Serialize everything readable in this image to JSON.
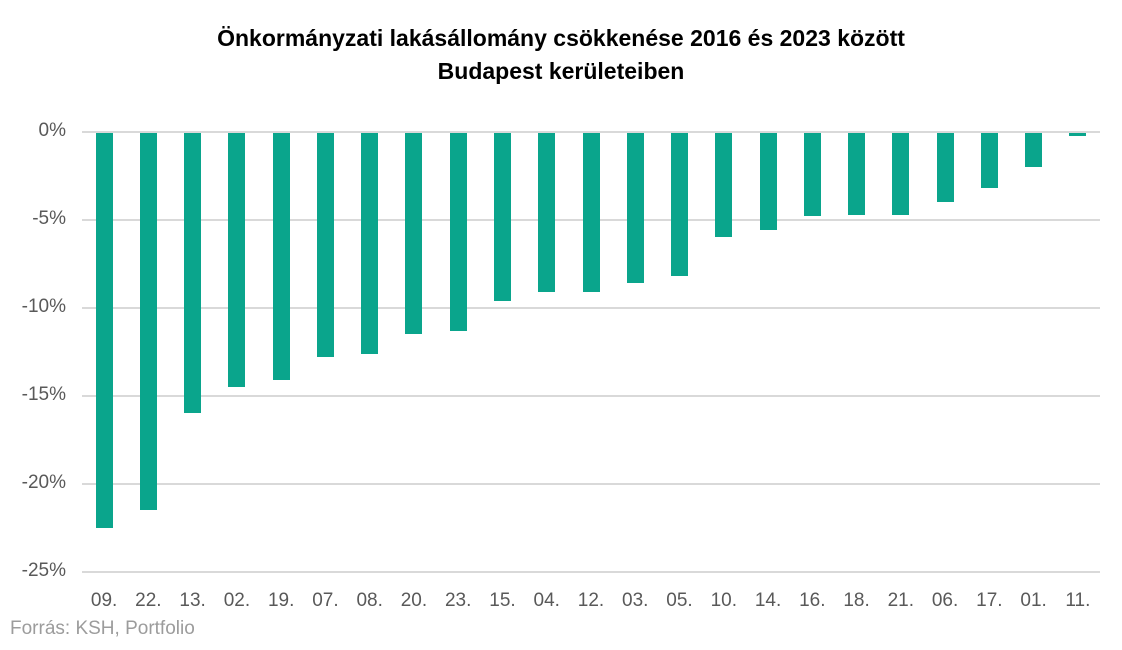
{
  "title": {
    "line1": "Önkormányzati lakásállomány csökkenése 2016 és 2023 között",
    "line2": "Budapest kerületeiben"
  },
  "source": "Forrás: KSH, Portfolio",
  "colors": {
    "bar": "#0AA58C",
    "gridline": "#d9d9d9",
    "axis_text": "#595959",
    "source_text": "#9c9c9c",
    "title_text": "#000000"
  },
  "chart_data": {
    "type": "bar",
    "title": "Önkormányzati lakásállomány csökkenése 2016 és 2023 között Budapest kerületeiben",
    "xlabel": "",
    "ylabel": "",
    "categories": [
      "09.",
      "22.",
      "13.",
      "02.",
      "19.",
      "07.",
      "08.",
      "20.",
      "23.",
      "15.",
      "04.",
      "12.",
      "03.",
      "05.",
      "10.",
      "14.",
      "16.",
      "18.",
      "21.",
      "06.",
      "17.",
      "01.",
      "11."
    ],
    "values": [
      -22.5,
      -21.5,
      -16.0,
      -14.5,
      -14.1,
      -12.8,
      -12.6,
      -11.5,
      -11.3,
      -9.6,
      -9.1,
      -9.1,
      -8.6,
      -8.2,
      -6.0,
      -5.6,
      -4.8,
      -4.7,
      -4.7,
      -4.0,
      -3.2,
      -2.0,
      -0.2
    ],
    "unit": "%",
    "ylim": [
      -25,
      0
    ],
    "ytick_labels": [
      "0%",
      "-5%",
      "-10%",
      "-15%",
      "-20%",
      "-25%"
    ],
    "ytick_values": [
      0,
      -5,
      -10,
      -15,
      -20,
      -25
    ],
    "grid": true,
    "legend": false,
    "bar_color": "#0AA58C"
  }
}
